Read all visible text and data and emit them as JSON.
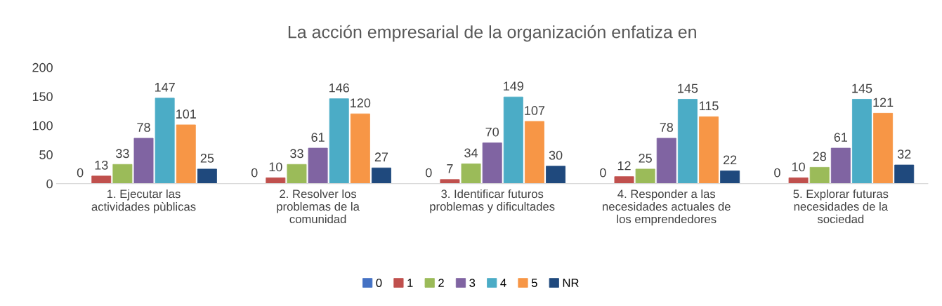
{
  "chart_data": {
    "type": "bar",
    "title": "La acción empresarial de la organización enfatiza en",
    "categories": [
      "1. Ejecutar las\nactividades pùblicas",
      "2. Resolver los\nproblemas de la\ncomunidad",
      "3. Identificar futuros\nproblemas y dificultades",
      "4. Responder a las\nnecesidades actuales de\nlos emprendedores",
      "5. Explorar futuras\nnecesidades de la\nsociedad"
    ],
    "series": [
      {
        "name": "0",
        "color": "#4472c4",
        "values": [
          0,
          0,
          0,
          0,
          0
        ]
      },
      {
        "name": "1",
        "color": "#c0504d",
        "values": [
          13,
          10,
          7,
          12,
          10
        ]
      },
      {
        "name": "2",
        "color": "#9bbb59",
        "values": [
          33,
          33,
          34,
          25,
          28
        ]
      },
      {
        "name": "3",
        "color": "#8064a2",
        "values": [
          78,
          61,
          70,
          78,
          61
        ]
      },
      {
        "name": "4",
        "color": "#4bacc6",
        "values": [
          147,
          146,
          149,
          145,
          145
        ]
      },
      {
        "name": "5",
        "color": "#f79646",
        "values": [
          101,
          120,
          107,
          115,
          121
        ]
      },
      {
        "name": "NR",
        "color": "#1f497d",
        "values": [
          25,
          27,
          30,
          22,
          32
        ]
      }
    ],
    "ylim": [
      0,
      200
    ],
    "yticks": [
      0,
      50,
      100,
      150,
      200
    ],
    "data_labels": true,
    "grid": false,
    "legend": "bottom"
  }
}
